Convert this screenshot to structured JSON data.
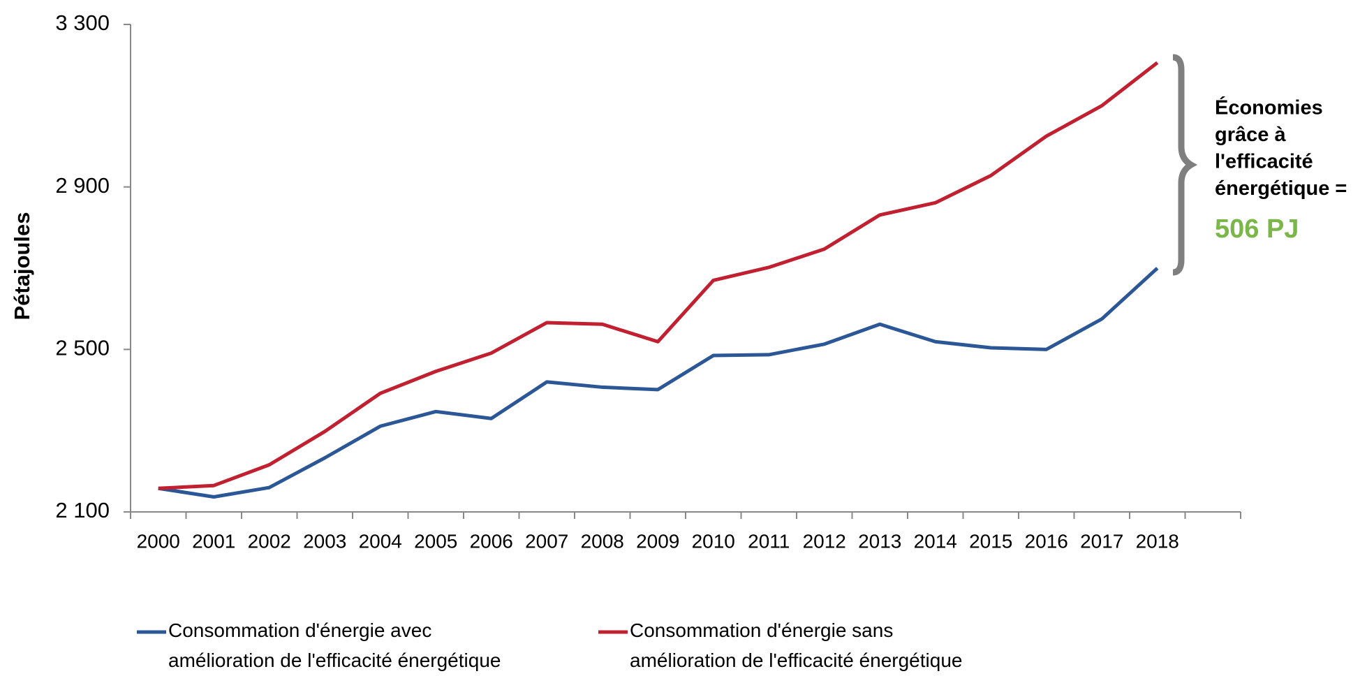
{
  "chart_data": {
    "type": "line",
    "y_label": "Pétajoules",
    "categories": [
      "2000",
      "2001",
      "2002",
      "2003",
      "2004",
      "2005",
      "2006",
      "2007",
      "2008",
      "2009",
      "2010",
      "2011",
      "2012",
      "2013",
      "2014",
      "2015",
      "2016",
      "2017",
      "2018"
    ],
    "series": [
      {
        "name": "Consommation d'énergie avec amélioration de l'efficacité énergétique",
        "color": "#2b5797",
        "values": [
          2158,
          2137,
          2160,
          2233,
          2311,
          2347,
          2330,
          2420,
          2407,
          2401,
          2485,
          2487,
          2513,
          2562,
          2519,
          2504,
          2500,
          2575,
          2700
        ]
      },
      {
        "name": "Consommation d'énergie sans amélioration de l'efficacité énergétique",
        "color": "#c0202f",
        "values": [
          2158,
          2165,
          2216,
          2298,
          2392,
          2446,
          2491,
          2566,
          2562,
          2519,
          2670,
          2702,
          2747,
          2831,
          2861,
          2928,
          3025,
          3100,
          3206
        ]
      }
    ],
    "ylim": [
      2100,
      3300
    ],
    "yticks": [
      {
        "value": 2100,
        "label": "2 100"
      },
      {
        "value": 2500,
        "label": "2 500"
      },
      {
        "value": 2900,
        "label": "2 900"
      },
      {
        "value": 3300,
        "label": "3 300"
      }
    ],
    "annotation": {
      "lines": [
        "Économies",
        "grâce à",
        "l'efficacité",
        "énergétique ="
      ],
      "value": "506 PJ",
      "value_color": "#7ab648"
    },
    "legend": "bottom"
  }
}
